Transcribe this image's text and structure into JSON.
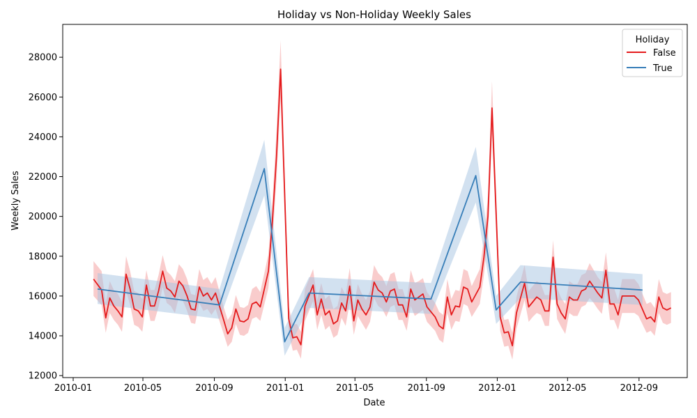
{
  "chart_data": {
    "type": "line",
    "title": "Holiday vs Non-Holiday Weekly Sales",
    "xlabel": "Date",
    "ylabel": "Weekly Sales",
    "x_ticks": [
      "2010-01",
      "2010-05",
      "2010-09",
      "2011-01",
      "2011-05",
      "2011-09",
      "2012-01",
      "2012-05",
      "2012-09"
    ],
    "y_ticks": [
      12000,
      14000,
      16000,
      18000,
      20000,
      22000,
      24000,
      26000,
      28000
    ],
    "ylim": [
      11900,
      29650
    ],
    "xlim": [
      "2009-12-14",
      "2012-11-23"
    ],
    "grid": false,
    "legend": {
      "title": "Holiday",
      "placement": "top-right"
    },
    "series": [
      {
        "name": "False",
        "color": "#e41a1c",
        "band_color": "#f4a3a3",
        "points": [
          [
            "2010-02-05",
            16850,
            17750,
            16000
          ],
          [
            "2010-02-19",
            16300,
            17250,
            15550
          ],
          [
            "2010-02-26",
            14900,
            15650,
            14150
          ],
          [
            "2010-03-05",
            15900,
            16750,
            15150
          ],
          [
            "2010-03-12",
            15500,
            16300,
            14800
          ],
          [
            "2010-03-19",
            15250,
            16100,
            14550
          ],
          [
            "2010-03-26",
            14950,
            15700,
            14200
          ],
          [
            "2010-04-02",
            17100,
            18000,
            16250
          ],
          [
            "2010-04-09",
            16350,
            17250,
            15550
          ],
          [
            "2010-04-16",
            15350,
            16250,
            14550
          ],
          [
            "2010-04-23",
            15250,
            16150,
            14450
          ],
          [
            "2010-04-30",
            14950,
            15850,
            14200
          ],
          [
            "2010-05-07",
            16550,
            17300,
            15750
          ],
          [
            "2010-05-14",
            15500,
            16300,
            14750
          ],
          [
            "2010-05-21",
            15500,
            16300,
            14750
          ],
          [
            "2010-05-28",
            16250,
            17050,
            15450
          ],
          [
            "2010-06-04",
            17250,
            18050,
            16450
          ],
          [
            "2010-06-11",
            16400,
            17250,
            15650
          ],
          [
            "2010-06-18",
            16250,
            17050,
            15500
          ],
          [
            "2010-06-25",
            15950,
            16750,
            15150
          ],
          [
            "2010-07-02",
            16750,
            17600,
            15950
          ],
          [
            "2010-07-09",
            16500,
            17350,
            15750
          ],
          [
            "2010-07-16",
            16000,
            16850,
            15250
          ],
          [
            "2010-07-23",
            15350,
            16100,
            14650
          ],
          [
            "2010-07-30",
            15300,
            16050,
            14600
          ],
          [
            "2010-08-06",
            16450,
            17350,
            15650
          ],
          [
            "2010-08-13",
            16000,
            16800,
            15250
          ],
          [
            "2010-08-20",
            16150,
            16950,
            15350
          ],
          [
            "2010-08-27",
            15800,
            16600,
            15050
          ],
          [
            "2010-09-03",
            16150,
            16950,
            15350
          ],
          [
            "2010-09-17",
            14800,
            15450,
            14100
          ],
          [
            "2010-09-24",
            14100,
            14800,
            13450
          ],
          [
            "2010-10-01",
            14400,
            15100,
            13700
          ],
          [
            "2010-10-08",
            15350,
            16050,
            14600
          ],
          [
            "2010-10-15",
            14750,
            15450,
            14050
          ],
          [
            "2010-10-22",
            14700,
            15400,
            14000
          ],
          [
            "2010-10-29",
            14850,
            15550,
            14150
          ],
          [
            "2010-11-05",
            15600,
            16350,
            14850
          ],
          [
            "2010-11-12",
            15700,
            16500,
            14950
          ],
          [
            "2010-11-19",
            15450,
            16200,
            14750
          ],
          [
            "2010-12-03",
            17250,
            18100,
            16400
          ],
          [
            "2010-12-10",
            19800,
            20800,
            18800
          ],
          [
            "2010-12-17",
            23000,
            24250,
            21800
          ],
          [
            "2010-12-24",
            27400,
            28850,
            25950
          ],
          [
            "2011-01-07",
            14850,
            15500,
            14150
          ],
          [
            "2011-01-14",
            13900,
            14550,
            13250
          ],
          [
            "2011-01-21",
            13950,
            14600,
            13300
          ],
          [
            "2011-01-28",
            13550,
            14200,
            12850
          ],
          [
            "2011-02-04",
            15500,
            16350,
            14750
          ],
          [
            "2011-02-18",
            16550,
            17350,
            15750
          ],
          [
            "2011-02-25",
            15050,
            15800,
            14300
          ],
          [
            "2011-03-04",
            15850,
            16650,
            15050
          ],
          [
            "2011-03-11",
            15050,
            15850,
            14300
          ],
          [
            "2011-03-18",
            15250,
            16050,
            14500
          ],
          [
            "2011-03-25",
            14600,
            15350,
            13900
          ],
          [
            "2011-04-01",
            14750,
            15500,
            14050
          ],
          [
            "2011-04-08",
            15650,
            16450,
            14900
          ],
          [
            "2011-04-15",
            15250,
            16050,
            14500
          ],
          [
            "2011-04-22",
            16500,
            17400,
            15650
          ],
          [
            "2011-04-29",
            14750,
            15500,
            14050
          ],
          [
            "2011-05-06",
            15800,
            16600,
            15000
          ],
          [
            "2011-05-13",
            15350,
            16100,
            14650
          ],
          [
            "2011-05-20",
            15050,
            15800,
            14300
          ],
          [
            "2011-05-27",
            15450,
            16250,
            14700
          ],
          [
            "2011-06-03",
            16700,
            17550,
            15900
          ],
          [
            "2011-06-10",
            16300,
            17150,
            15500
          ],
          [
            "2011-06-17",
            16150,
            16950,
            15350
          ],
          [
            "2011-06-24",
            15700,
            16500,
            14950
          ],
          [
            "2011-07-01",
            16250,
            17100,
            15450
          ],
          [
            "2011-07-08",
            16350,
            17200,
            15550
          ],
          [
            "2011-07-15",
            15550,
            16350,
            14800
          ],
          [
            "2011-07-22",
            15550,
            16350,
            14800
          ],
          [
            "2011-07-29",
            14950,
            15700,
            14250
          ],
          [
            "2011-08-05",
            16350,
            17300,
            15500
          ],
          [
            "2011-08-12",
            15800,
            16650,
            15000
          ],
          [
            "2011-08-19",
            15950,
            16750,
            15150
          ],
          [
            "2011-08-26",
            16100,
            16900,
            15300
          ],
          [
            "2011-09-02",
            15450,
            16200,
            14700
          ],
          [
            "2011-09-16",
            14950,
            15650,
            14250
          ],
          [
            "2011-09-23",
            14500,
            15200,
            13800
          ],
          [
            "2011-09-30",
            14350,
            15050,
            13650
          ],
          [
            "2011-10-07",
            15950,
            16850,
            15150
          ],
          [
            "2011-10-14",
            15050,
            15850,
            14300
          ],
          [
            "2011-10-21",
            15500,
            16300,
            14750
          ],
          [
            "2011-10-28",
            15450,
            16250,
            14700
          ],
          [
            "2011-11-04",
            16450,
            17350,
            15600
          ],
          [
            "2011-11-11",
            16350,
            17250,
            15500
          ],
          [
            "2011-11-18",
            15700,
            16500,
            14950
          ],
          [
            "2011-12-02",
            16450,
            17350,
            15600
          ],
          [
            "2011-12-09",
            17950,
            18900,
            17050
          ],
          [
            "2011-12-16",
            20000,
            21050,
            18950
          ],
          [
            "2011-12-23",
            25450,
            26800,
            24150
          ],
          [
            "2012-01-06",
            14950,
            15600,
            14250
          ],
          [
            "2012-01-13",
            14150,
            14800,
            13450
          ],
          [
            "2012-01-20",
            14200,
            14850,
            13500
          ],
          [
            "2012-01-27",
            13500,
            14150,
            12800
          ],
          [
            "2012-02-03",
            15150,
            15950,
            14350
          ],
          [
            "2012-02-17",
            16650,
            17550,
            15800
          ],
          [
            "2012-02-24",
            15450,
            16250,
            14700
          ],
          [
            "2012-03-02",
            15700,
            16500,
            14950
          ],
          [
            "2012-03-09",
            15950,
            16750,
            15150
          ],
          [
            "2012-03-16",
            15800,
            16600,
            15050
          ],
          [
            "2012-03-23",
            15250,
            16050,
            14500
          ],
          [
            "2012-03-30",
            15250,
            16050,
            14500
          ],
          [
            "2012-04-06",
            17950,
            18800,
            17050
          ],
          [
            "2012-04-13",
            15600,
            16400,
            14850
          ],
          [
            "2012-04-20",
            15150,
            15900,
            14450
          ],
          [
            "2012-04-27",
            14850,
            15600,
            14100
          ],
          [
            "2012-05-04",
            15950,
            16750,
            15150
          ],
          [
            "2012-05-11",
            15800,
            16600,
            15000
          ],
          [
            "2012-05-18",
            15800,
            16600,
            15000
          ],
          [
            "2012-05-25",
            16250,
            17050,
            15450
          ],
          [
            "2012-06-01",
            16350,
            17150,
            15550
          ],
          [
            "2012-06-08",
            16750,
            17650,
            15900
          ],
          [
            "2012-06-15",
            16450,
            17300,
            15650
          ],
          [
            "2012-06-22",
            16150,
            16950,
            15350
          ],
          [
            "2012-06-29",
            15900,
            16700,
            15100
          ],
          [
            "2012-07-06",
            17300,
            18200,
            16450
          ],
          [
            "2012-07-13",
            15600,
            16400,
            14800
          ],
          [
            "2012-07-20",
            15600,
            16400,
            14800
          ],
          [
            "2012-07-27",
            15050,
            15800,
            14300
          ],
          [
            "2012-08-03",
            16000,
            16850,
            15150
          ],
          [
            "2012-08-10",
            16000,
            16850,
            15150
          ],
          [
            "2012-08-17",
            16000,
            16850,
            15150
          ],
          [
            "2012-08-24",
            16000,
            16850,
            15150
          ],
          [
            "2012-08-31",
            15800,
            16600,
            15000
          ],
          [
            "2012-09-14",
            14850,
            15600,
            14150
          ],
          [
            "2012-09-21",
            14950,
            15700,
            14250
          ],
          [
            "2012-09-28",
            14700,
            15400,
            14000
          ],
          [
            "2012-10-05",
            15950,
            16850,
            15150
          ],
          [
            "2012-10-12",
            15400,
            16200,
            14650
          ],
          [
            "2012-10-19",
            15300,
            16100,
            14550
          ],
          [
            "2012-10-26",
            15400,
            16200,
            14650
          ]
        ]
      },
      {
        "name": "True",
        "color": "#377eb8",
        "band_color": "#a6c4e2",
        "points": [
          [
            "2010-02-12",
            16350,
            17150,
            15600
          ],
          [
            "2010-09-10",
            15550,
            16350,
            14850
          ],
          [
            "2010-11-26",
            22400,
            23850,
            21050
          ],
          [
            "2010-12-31",
            13700,
            14400,
            13000
          ],
          [
            "2011-02-11",
            16150,
            16950,
            15400
          ],
          [
            "2011-09-09",
            15850,
            16650,
            15100
          ],
          [
            "2011-11-25",
            22050,
            23500,
            20700
          ],
          [
            "2011-12-30",
            15300,
            16000,
            14600
          ],
          [
            "2012-02-10",
            16700,
            17550,
            15900
          ],
          [
            "2012-09-07",
            16300,
            17100,
            15550
          ]
        ]
      }
    ]
  }
}
